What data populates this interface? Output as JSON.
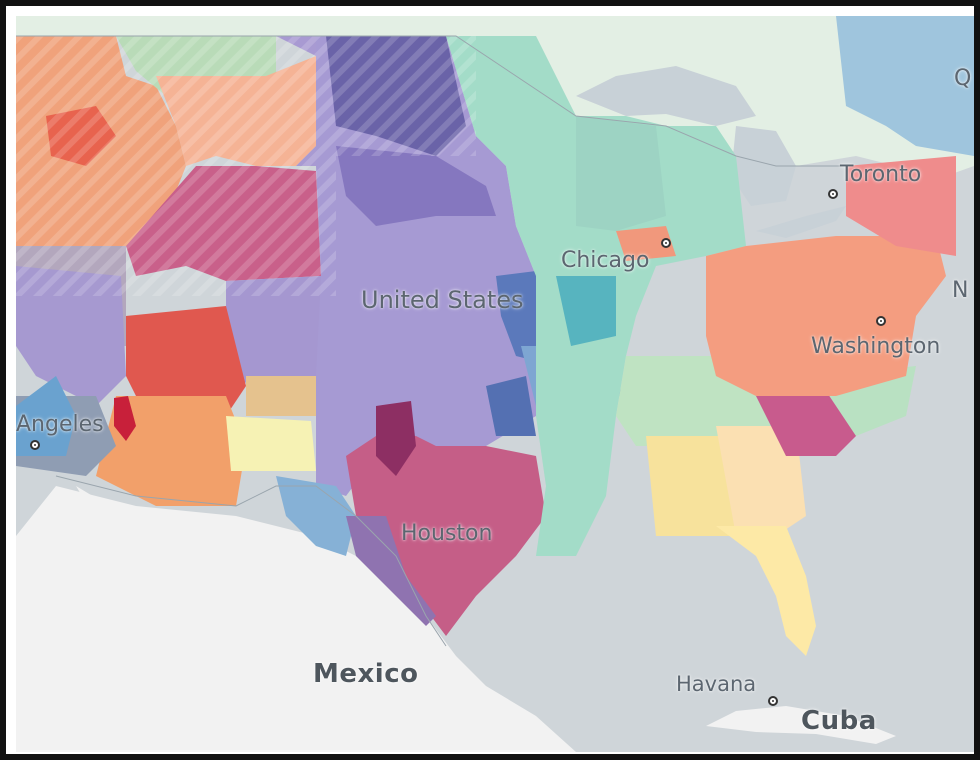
{
  "map": {
    "labels": {
      "toronto": "Toronto",
      "chicago": "Chicago",
      "united_states": "United States",
      "washington": "Washington",
      "angeles": "Angeles",
      "houston": "Houston",
      "mexico": "Mexico",
      "havana": "Havana",
      "cuba": "Cuba",
      "q_cut": "Q",
      "n_cut": "N"
    },
    "colors": {
      "water": "#cfd5d9",
      "land_mexico": "#f2f2f2",
      "land_canada": "#e2efe3",
      "lakes": "#c9d2d8",
      "teal_region": "#a3dcc8",
      "purple_region": "#a89ad2",
      "northeast_orange": "#f49d80",
      "texas_magenta": "#c86088",
      "west_orange": "#f19a74",
      "florida_yellow": "#fde9a6"
    }
  }
}
